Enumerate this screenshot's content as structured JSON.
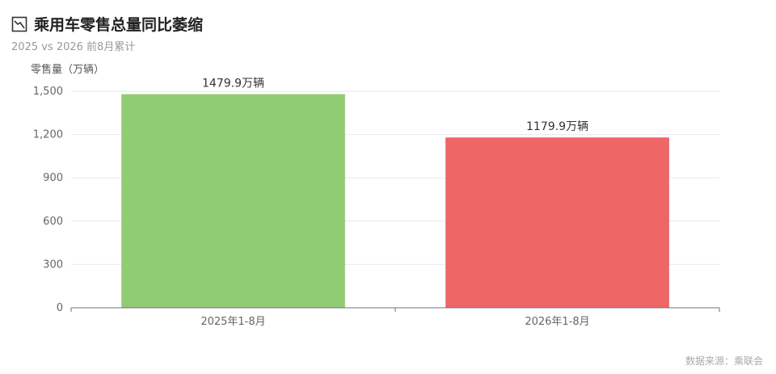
{
  "header": {
    "title": "乘用车零售总量同比萎缩",
    "subtitle": "2025 vs 2026 前8月累计",
    "icon": "chart-line-down-icon"
  },
  "footer": {
    "source": "数据来源：乘联会"
  },
  "chart_data": {
    "type": "bar",
    "title": "乘用车零售总量同比萎缩",
    "subtitle": "2025 vs 2026 前8月累计",
    "ylabel": "零售量（万辆）",
    "xlabel": "",
    "categories": [
      "2025年1-8月",
      "2026年1-8月"
    ],
    "values": [
      1479.9,
      1179.9
    ],
    "data_labels": [
      "1479.9万辆",
      "1179.9万辆"
    ],
    "colors": [
      "#91cc75",
      "#ee6666"
    ],
    "ylim": [
      0,
      1500
    ],
    "yticks": [
      0,
      300,
      600,
      900,
      1200,
      1500
    ],
    "ytick_labels": [
      "0",
      "300",
      "600",
      "900",
      "1,200",
      "1,500"
    ],
    "grid": true,
    "legend": "none"
  }
}
